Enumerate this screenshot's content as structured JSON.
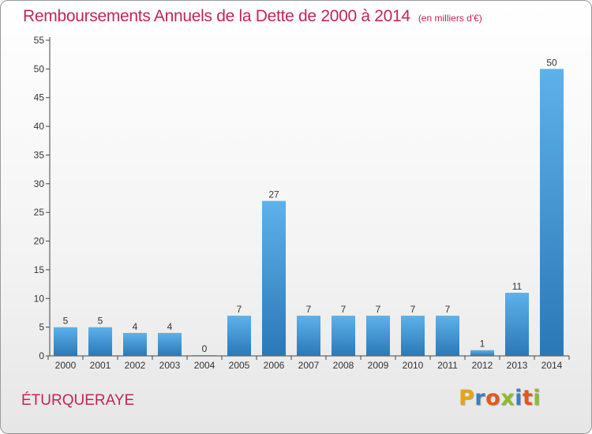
{
  "header": {
    "title": "Remboursements Annuels de la Dette de 2000 à 2014",
    "unit": "(en milliers d'€)"
  },
  "footer": {
    "commune": "ÉTURQUERAYE",
    "logo": {
      "text": "Proxiti",
      "colors": [
        "#e8a317",
        "#3a7fc1",
        "#e05a1c",
        "#8dbb2e",
        "#3a7fc1",
        "#e05a1c",
        "#8dbb2e"
      ]
    }
  },
  "colors": {
    "bar_top": "#5eb1ea",
    "bar_bottom": "#2b78b6",
    "title": "#c4245b"
  },
  "chart_data": {
    "type": "bar",
    "title": "Remboursements Annuels de la Dette de 2000 à 2014",
    "xlabel": "",
    "ylabel": "",
    "categories": [
      "2000",
      "2001",
      "2002",
      "2003",
      "2004",
      "2005",
      "2006",
      "2007",
      "2008",
      "2009",
      "2010",
      "2011",
      "2012",
      "2013",
      "2014"
    ],
    "values": [
      5,
      5,
      4,
      4,
      0,
      7,
      27,
      7,
      7,
      7,
      7,
      7,
      1,
      11,
      50
    ],
    "value_labels": [
      "5",
      "5",
      "4",
      "4",
      "0",
      "7",
      "27",
      "7",
      "7",
      "7",
      "7",
      "7",
      "1",
      "11",
      "50"
    ],
    "ylim": [
      0,
      55
    ],
    "yticks": [
      0,
      5,
      10,
      15,
      20,
      25,
      30,
      35,
      40,
      45,
      50,
      55
    ],
    "ytick_labels": [
      "0",
      "5",
      "10",
      "15",
      "20",
      "25",
      "30",
      "35",
      "40",
      "45",
      "50",
      "55"
    ],
    "grid": false,
    "legend": "none"
  }
}
